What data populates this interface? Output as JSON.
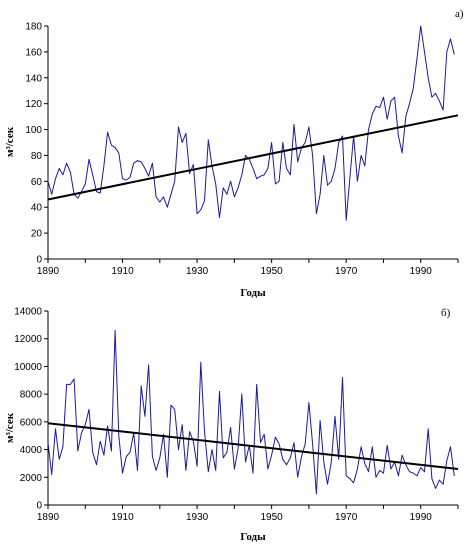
{
  "chart_data": [
    {
      "type": "line",
      "panel_label": "а)",
      "xlabel": "Годы",
      "ylabel": "м³/сек",
      "xlim": [
        1890,
        2000
      ],
      "ylim": [
        0,
        180
      ],
      "x_ticks": [
        1890,
        1910,
        1930,
        1950,
        1970,
        1990
      ],
      "y_ticks": [
        0,
        20,
        40,
        60,
        80,
        100,
        120,
        140,
        160,
        180
      ],
      "grid": false,
      "series": [
        {
          "x": [
            1890,
            1891,
            1892,
            1893,
            1894,
            1895,
            1896,
            1897,
            1898,
            1899,
            1900,
            1901,
            1902,
            1903,
            1904,
            1905,
            1906,
            1907,
            1908,
            1909,
            1910,
            1911,
            1912,
            1913,
            1914,
            1915,
            1916,
            1917,
            1918,
            1919,
            1920,
            1921,
            1922,
            1923,
            1924,
            1925,
            1926,
            1927,
            1928,
            1929,
            1930,
            1931,
            1932,
            1933,
            1934,
            1935,
            1936,
            1937,
            1938,
            1939,
            1940,
            1941,
            1942,
            1943,
            1944,
            1945,
            1946,
            1947,
            1948,
            1949,
            1950,
            1951,
            1952,
            1953,
            1954,
            1955,
            1956,
            1957,
            1958,
            1959,
            1960,
            1961,
            1962,
            1963,
            1964,
            1965,
            1966,
            1967,
            1968,
            1969,
            1970,
            1971,
            1972,
            1973,
            1974,
            1975,
            1976,
            1977,
            1978,
            1979,
            1980,
            1981,
            1982,
            1983,
            1984,
            1985,
            1986,
            1987,
            1988,
            1989,
            1990,
            1991,
            1992,
            1993,
            1994,
            1995,
            1996,
            1997,
            1998,
            1999
          ],
          "values": [
            60,
            50,
            62,
            70,
            65,
            74,
            67,
            50,
            47,
            52,
            58,
            77,
            65,
            52,
            51,
            72,
            98,
            88,
            86,
            82,
            62,
            61,
            63,
            74,
            76,
            75,
            70,
            64,
            74,
            48,
            44,
            48,
            40,
            50,
            60,
            102,
            90,
            97,
            66,
            73,
            35,
            38,
            45,
            92,
            72,
            58,
            32,
            55,
            50,
            60,
            48,
            55,
            65,
            80,
            77,
            70,
            62,
            64,
            65,
            70,
            90,
            58,
            60,
            90,
            70,
            65,
            104,
            75,
            86,
            90,
            102,
            80,
            35,
            50,
            80,
            57,
            60,
            70,
            90,
            95,
            30,
            63,
            95,
            60,
            80,
            72,
            100,
            112,
            118,
            117,
            125,
            108,
            122,
            125,
            95,
            82,
            110,
            120,
            132,
            155,
            180,
            160,
            140,
            125,
            128,
            122,
            115,
            160,
            170,
            158
          ],
          "color": "#1a1aa0"
        },
        {
          "name": "trend",
          "x": [
            1890,
            2000
          ],
          "values": [
            46,
            111
          ],
          "color": "#000000"
        }
      ]
    },
    {
      "type": "line",
      "panel_label": "б)",
      "xlabel": "Годы",
      "ylabel": "м³/сек",
      "xlim": [
        1890,
        2000
      ],
      "ylim": [
        0,
        14000
      ],
      "x_ticks": [
        1890,
        1910,
        1930,
        1950,
        1970,
        1990
      ],
      "y_ticks": [
        0,
        2000,
        4000,
        6000,
        8000,
        10000,
        12000,
        14000
      ],
      "grid": false,
      "series": [
        {
          "x": [
            1890,
            1891,
            1892,
            1893,
            1894,
            1895,
            1896,
            1897,
            1898,
            1899,
            1900,
            1901,
            1902,
            1903,
            1904,
            1905,
            1906,
            1907,
            1908,
            1909,
            1910,
            1911,
            1912,
            1913,
            1914,
            1915,
            1916,
            1917,
            1918,
            1919,
            1920,
            1921,
            1922,
            1923,
            1924,
            1925,
            1926,
            1927,
            1928,
            1929,
            1930,
            1931,
            1932,
            1933,
            1934,
            1935,
            1936,
            1937,
            1938,
            1939,
            1940,
            1941,
            1942,
            1943,
            1944,
            1945,
            1946,
            1947,
            1948,
            1949,
            1950,
            1951,
            1952,
            1953,
            1954,
            1955,
            1956,
            1957,
            1958,
            1959,
            1960,
            1961,
            1962,
            1963,
            1964,
            1965,
            1966,
            1967,
            1968,
            1969,
            1970,
            1971,
            1972,
            1973,
            1974,
            1975,
            1976,
            1977,
            1978,
            1979,
            1980,
            1981,
            1982,
            1983,
            1984,
            1985,
            1986,
            1987,
            1988,
            1989,
            1990,
            1991,
            1992,
            1993,
            1994,
            1995,
            1996,
            1997,
            1998,
            1999
          ],
          "values": [
            4500,
            2200,
            5500,
            3300,
            4200,
            8700,
            8700,
            9100,
            3900,
            5200,
            5800,
            6900,
            3800,
            2900,
            4600,
            3600,
            5700,
            3900,
            12600,
            5000,
            2300,
            3500,
            3800,
            5200,
            2500,
            8600,
            6400,
            10100,
            3500,
            2500,
            3400,
            5100,
            2000,
            7200,
            6900,
            4000,
            5800,
            2500,
            5300,
            4600,
            2800,
            10300,
            5300,
            2400,
            4000,
            2500,
            8200,
            3400,
            3800,
            5600,
            2600,
            4100,
            8000,
            3100,
            4300,
            2300,
            8700,
            4500,
            5100,
            2600,
            3600,
            4900,
            4400,
            3300,
            2900,
            3400,
            4500,
            2000,
            3500,
            4400,
            7400,
            4400,
            800,
            6100,
            3100,
            1500,
            3100,
            6400,
            3300,
            9200,
            2100,
            1900,
            1600,
            2600,
            4200,
            3000,
            2400,
            4200,
            2000,
            2500,
            2300,
            4300,
            2600,
            3100,
            2100,
            3600,
            2900,
            2400,
            2300,
            2100,
            2700,
            2400,
            5500,
            1900,
            1200,
            1800,
            1500,
            3200,
            4200,
            2100
          ],
          "color": "#1a1aa0"
        },
        {
          "name": "trend",
          "x": [
            1890,
            2000
          ],
          "values": [
            5900,
            2600
          ],
          "color": "#000000"
        }
      ]
    }
  ]
}
